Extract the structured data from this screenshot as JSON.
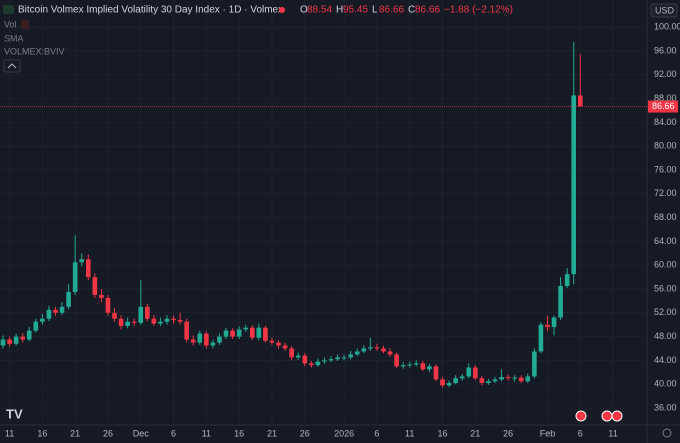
{
  "header": {
    "title": "Bitcoin Volmex Implied Volatility 30 Day Index · 1D · Volmex",
    "ohlc": [
      {
        "label": "O",
        "value": 88.54
      },
      {
        "label": "H",
        "value": 95.45
      },
      {
        "label": "L",
        "value": 86.66
      },
      {
        "label": "C",
        "value": 86.66
      }
    ],
    "change": "−1.88 (−2.12%)",
    "indicators": [
      "Vol",
      "SMA",
      "VOLMEX:BVIV"
    ],
    "currency": "USD"
  },
  "chart_data": {
    "type": "candlestick",
    "categories": [
      null,
      "11",
      null,
      null,
      null,
      null,
      "16",
      null,
      null,
      null,
      null,
      "21",
      null,
      null,
      null,
      null,
      "26",
      null,
      null,
      null,
      null,
      "Dec",
      null,
      null,
      null,
      null,
      "6",
      null,
      null,
      null,
      null,
      "11",
      null,
      null,
      null,
      null,
      "16",
      null,
      null,
      null,
      null,
      "21",
      null,
      null,
      null,
      null,
      "26",
      null,
      null,
      null,
      null,
      null,
      "2026",
      null,
      null,
      null,
      null,
      "6",
      null,
      null,
      null,
      null,
      "11",
      null,
      null,
      null,
      null,
      "16",
      null,
      null,
      null,
      null,
      "21",
      null,
      null,
      null,
      null,
      "26",
      null,
      null,
      null,
      null,
      null,
      "Feb",
      null,
      null,
      null,
      null,
      "6",
      null,
      null,
      null,
      null,
      "11"
    ],
    "open": [
      46.5,
      47.5,
      46.8,
      48.0,
      47.5,
      49.0,
      50.5,
      51.0,
      52.5,
      52.0,
      53.0,
      55.5,
      60.5,
      61.0,
      58.0,
      55.0,
      54.5,
      52.0,
      51.0,
      49.8,
      50.5,
      50.3,
      53.0,
      51.0,
      50.2,
      50.5,
      51.0,
      50.8,
      50.5,
      47.5,
      47.0,
      48.5,
      46.5,
      47.0,
      48.0,
      49.0,
      48.0,
      49.2,
      49.5,
      47.8,
      49.5,
      47.3,
      47.0,
      46.5,
      46.0,
      44.5,
      44.8,
      43.5,
      43.2,
      43.8,
      44.0,
      44.2,
      44.5,
      44.5,
      45.0,
      45.5,
      46.0,
      46.2,
      46.0,
      45.5,
      45.0,
      43.0,
      43.2,
      43.3,
      43.5,
      42.5,
      43.0,
      40.8,
      39.8,
      40.2,
      41.0,
      41.3,
      42.8,
      41.0,
      40.2,
      40.5,
      40.8,
      41.2,
      41.0,
      41.1,
      40.5,
      41.3,
      45.5,
      50.0,
      49.6,
      51.2,
      56.5,
      58.5,
      88.54,
      null,
      null,
      null,
      null,
      null
    ],
    "high": [
      48.2,
      48.0,
      48.5,
      48.6,
      49.6,
      51.0,
      51.8,
      53.2,
      53.0,
      53.8,
      56.8,
      65.0,
      62.0,
      61.8,
      58.6,
      56.0,
      55.0,
      52.8,
      51.6,
      51.2,
      51.0,
      57.5,
      53.5,
      51.6,
      51.2,
      51.6,
      51.5,
      52.0,
      51.0,
      48.2,
      49.0,
      48.9,
      47.5,
      48.5,
      49.5,
      49.4,
      49.7,
      50.0,
      49.9,
      50.2,
      49.8,
      47.8,
      47.4,
      47.0,
      46.4,
      45.3,
      45.2,
      43.9,
      44.3,
      44.5,
      44.7,
      45.0,
      45.0,
      45.6,
      46.0,
      46.5,
      47.8,
      46.8,
      46.5,
      46.0,
      45.3,
      43.7,
      43.8,
      44.0,
      43.9,
      43.4,
      43.3,
      41.2,
      40.6,
      41.5,
      41.7,
      43.5,
      43.2,
      41.4,
      40.9,
      41.2,
      42.5,
      41.6,
      41.5,
      41.5,
      41.8,
      46.0,
      50.4,
      51.5,
      51.5,
      58.0,
      59.5,
      97.5,
      95.45,
      null,
      null,
      null,
      null,
      null
    ],
    "low": [
      46.0,
      46.3,
      46.5,
      47.0,
      47.2,
      48.7,
      50.0,
      50.6,
      51.5,
      51.6,
      52.6,
      55.0,
      59.8,
      57.5,
      54.5,
      53.8,
      51.5,
      50.5,
      49.2,
      49.4,
      49.8,
      50.0,
      50.6,
      49.8,
      49.8,
      50.0,
      50.2,
      50.0,
      47.0,
      46.5,
      46.6,
      46.0,
      46.0,
      46.6,
      47.6,
      47.6,
      47.6,
      48.8,
      47.4,
      47.4,
      47.0,
      46.6,
      46.0,
      45.6,
      44.0,
      44.1,
      43.0,
      42.8,
      42.9,
      43.4,
      43.7,
      43.9,
      44.0,
      44.2,
      44.7,
      45.2,
      45.6,
      45.6,
      45.2,
      44.6,
      42.7,
      42.6,
      42.8,
      43.0,
      42.2,
      42.0,
      40.5,
      39.4,
      39.5,
      40.0,
      40.6,
      41.0,
      40.7,
      39.8,
      39.9,
      40.2,
      40.5,
      40.6,
      40.4,
      40.2,
      40.2,
      41.0,
      45.2,
      48.9,
      48.2,
      50.8,
      56.2,
      56.8,
      86.66,
      null,
      null,
      null,
      null,
      null
    ],
    "close": [
      47.5,
      46.8,
      48.0,
      47.5,
      49.0,
      50.5,
      51.0,
      52.5,
      52.0,
      53.0,
      55.5,
      60.5,
      61.0,
      58.0,
      55.0,
      54.5,
      52.0,
      51.0,
      49.8,
      50.5,
      50.3,
      53.0,
      51.0,
      50.2,
      50.5,
      51.0,
      50.8,
      50.5,
      47.5,
      47.0,
      48.5,
      46.5,
      47.0,
      48.0,
      49.0,
      48.0,
      49.2,
      49.5,
      47.8,
      49.5,
      47.3,
      47.0,
      46.5,
      46.0,
      44.5,
      44.8,
      43.5,
      43.2,
      43.8,
      44.0,
      44.2,
      44.5,
      44.5,
      45.0,
      45.5,
      46.0,
      46.2,
      46.0,
      45.5,
      45.0,
      43.0,
      43.2,
      43.3,
      43.5,
      42.5,
      43.0,
      40.8,
      39.8,
      40.2,
      41.0,
      41.3,
      42.8,
      41.0,
      40.2,
      40.5,
      40.8,
      41.2,
      41.0,
      41.1,
      40.5,
      41.3,
      45.5,
      50.0,
      49.6,
      51.2,
      56.5,
      58.5,
      88.54,
      86.66,
      null,
      null,
      null,
      null,
      null
    ],
    "up_color": "#22ab94",
    "down_color": "#f23645",
    "last_price": 86.66,
    "ylim": [
      33.14,
      104.57
    ],
    "yticks": [
      {
        "value": 36,
        "label": "36.00"
      },
      {
        "value": 40,
        "label": "40.00"
      },
      {
        "value": 44,
        "label": "44.00"
      },
      {
        "value": 48,
        "label": "48.00"
      },
      {
        "value": 52,
        "label": "52.00"
      },
      {
        "value": 56,
        "label": "56.00"
      },
      {
        "value": 60,
        "label": "60.00"
      },
      {
        "value": 64,
        "label": "64.00"
      },
      {
        "value": 68,
        "label": "68.00"
      },
      {
        "value": 72,
        "label": "72.00"
      },
      {
        "value": 76,
        "label": "76.00"
      },
      {
        "value": 80,
        "label": "80.00"
      },
      {
        "value": 84,
        "label": "84.00"
      },
      {
        "value": 88,
        "label": "88.00"
      },
      {
        "value": 92,
        "label": "92.00"
      },
      {
        "value": 96,
        "label": "96.00"
      },
      {
        "value": 100,
        "label": "100.00"
      }
    ],
    "grid": true
  }
}
